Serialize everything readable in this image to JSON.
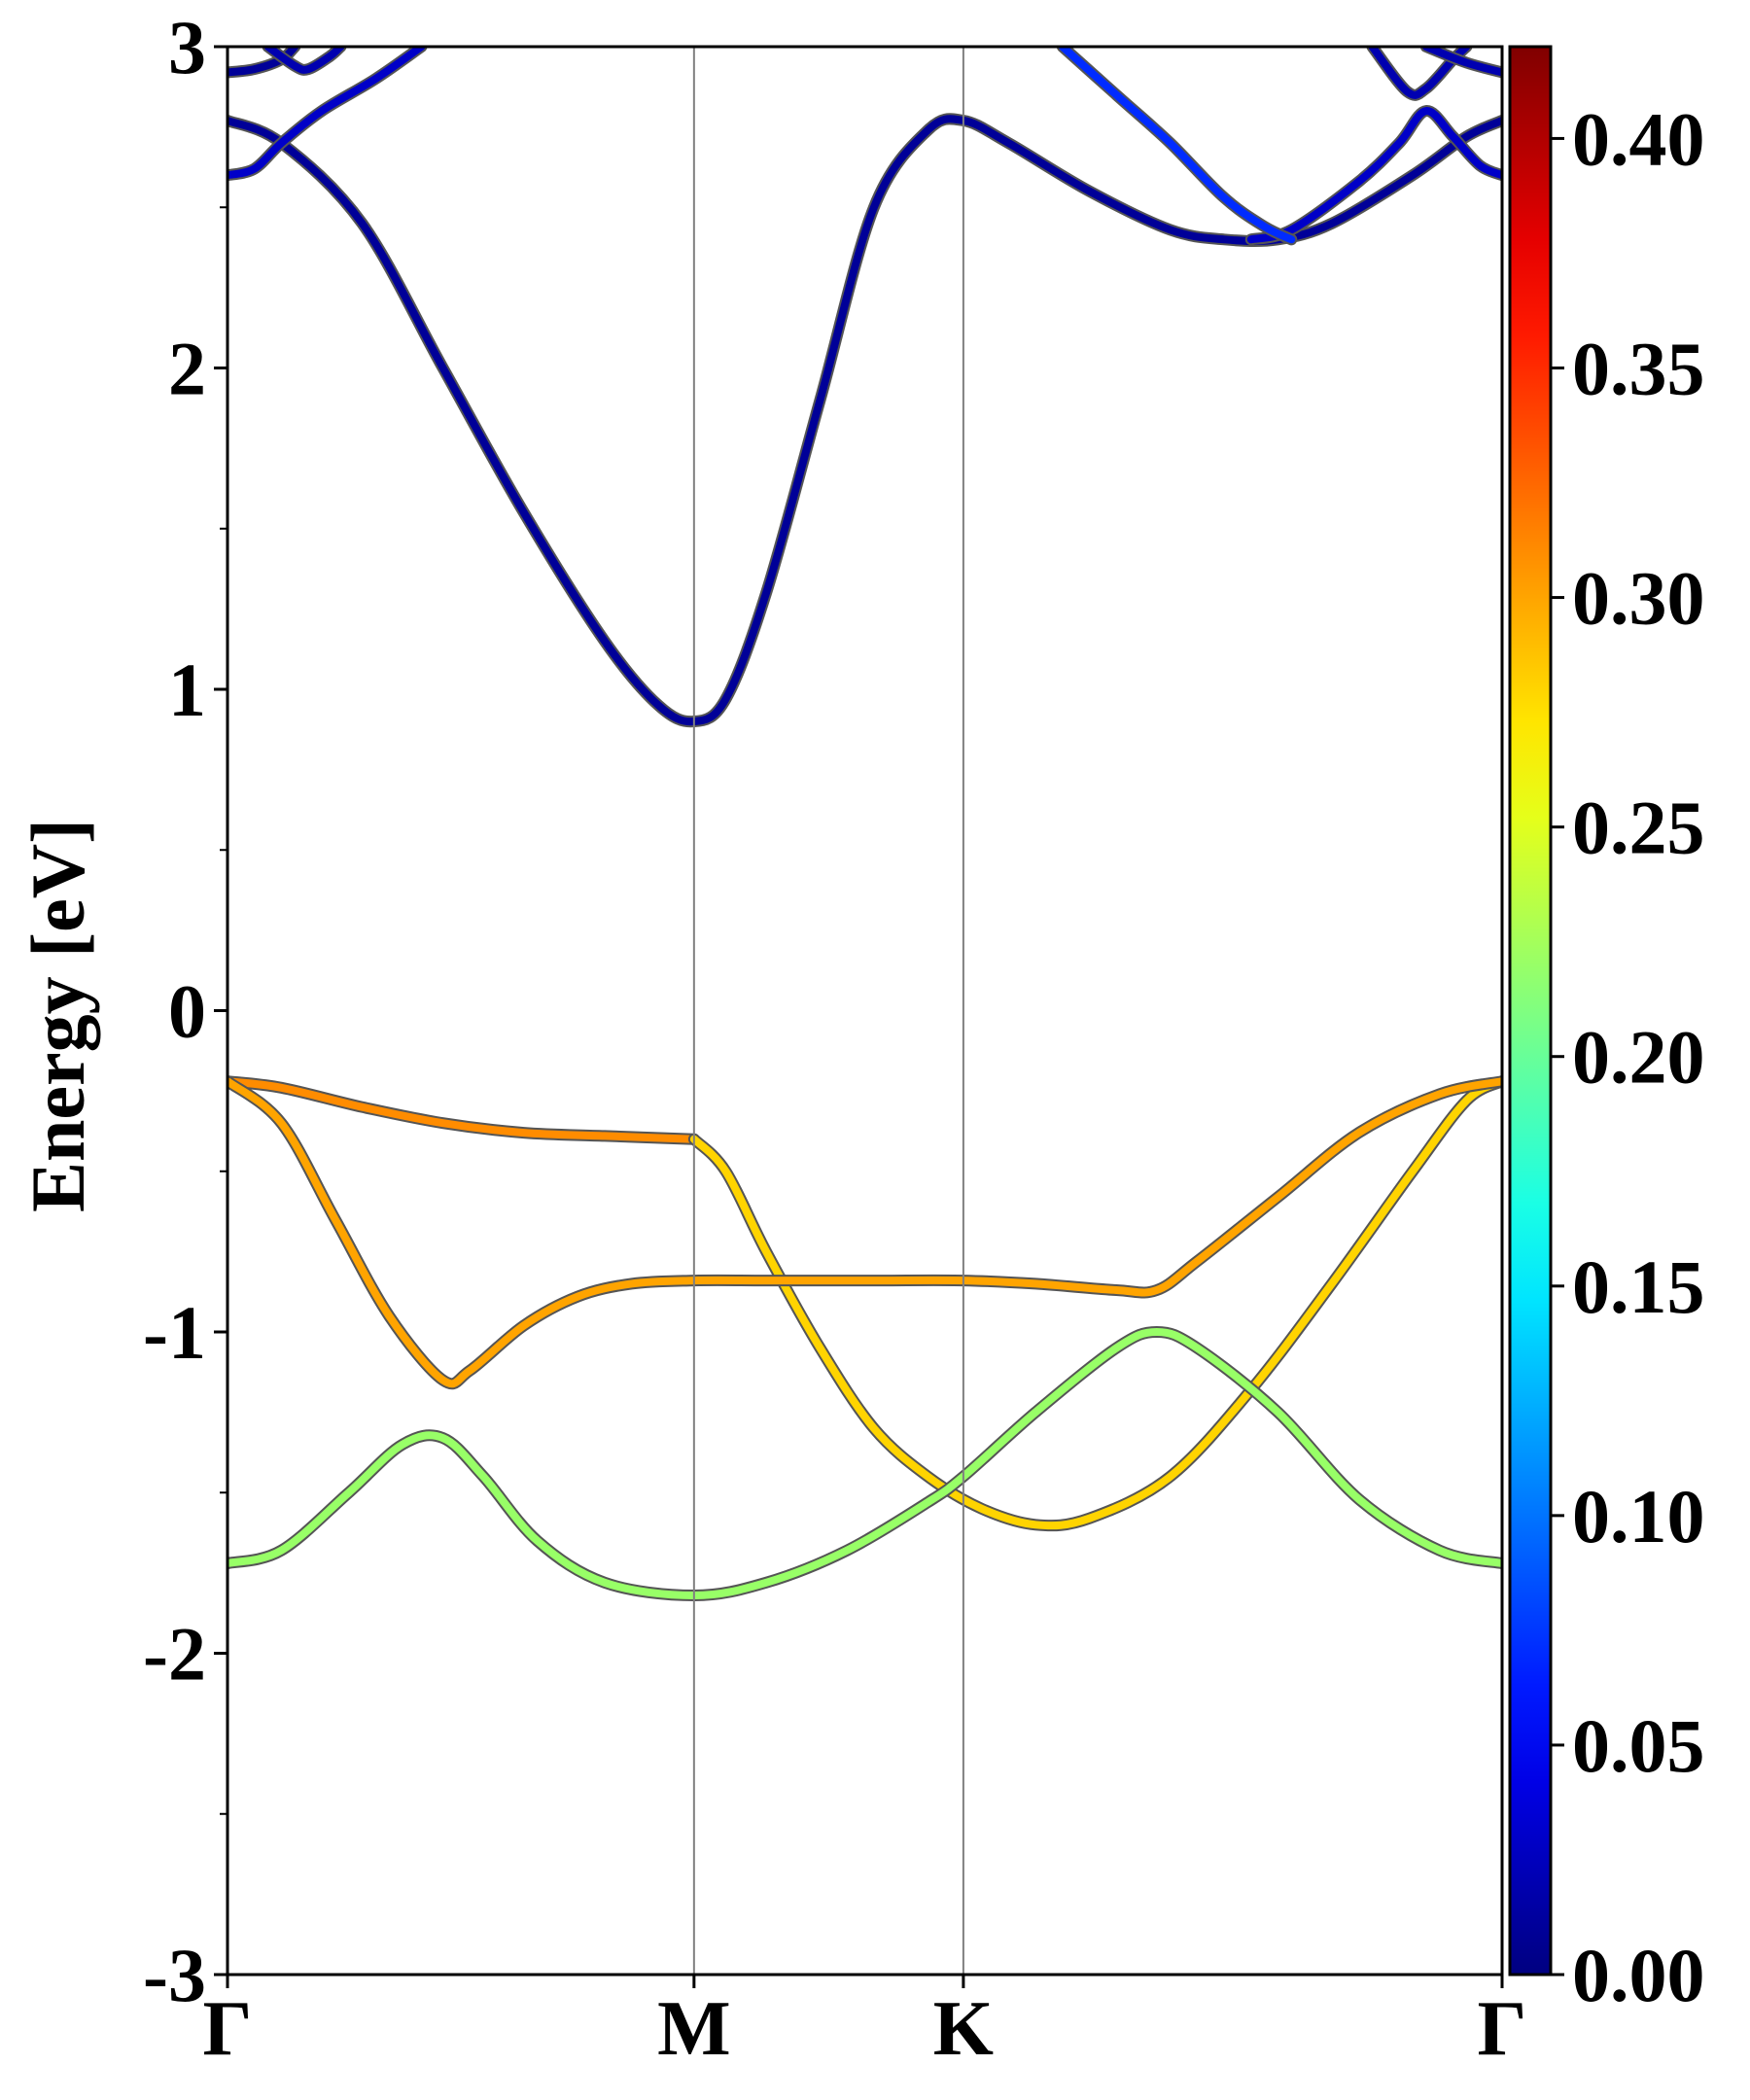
{
  "chart_data": {
    "type": "line",
    "title": "",
    "ylabel": "Energy [eV]",
    "xlabel": "",
    "ylim": [
      -3,
      3
    ],
    "yticks": [
      "-3",
      "-2",
      "-1",
      "0",
      "1",
      "2",
      "3"
    ],
    "kpath": {
      "labels": [
        "Γ",
        "M",
        "K",
        "Γ"
      ],
      "positions": [
        0,
        1.732,
        2.732,
        4.732
      ]
    },
    "colorbar": {
      "colormap": "jet",
      "range": [
        0.0,
        0.42
      ],
      "ticks": [
        "0.00",
        "0.05",
        "0.10",
        "0.15",
        "0.20",
        "0.25",
        "0.30",
        "0.35",
        "0.40"
      ]
    },
    "colors": {
      "vline": "#808080",
      "axis": "#000000",
      "band_outline": "#555555"
    },
    "series": [
      {
        "weight": 0.01,
        "points": [
          [
            0,
            2.77
          ],
          [
            0.2,
            2.7
          ],
          [
            0.5,
            2.45
          ],
          [
            0.8,
            2.0
          ],
          [
            1.1,
            1.55
          ],
          [
            1.4,
            1.15
          ],
          [
            1.6,
            0.95
          ],
          [
            1.732,
            0.9
          ],
          [
            1.85,
            0.97
          ],
          [
            2.0,
            1.3
          ],
          [
            2.2,
            1.9
          ],
          [
            2.4,
            2.5
          ],
          [
            2.6,
            2.74
          ],
          [
            2.732,
            2.77
          ],
          [
            2.9,
            2.7
          ],
          [
            3.2,
            2.55
          ],
          [
            3.5,
            2.43
          ],
          [
            3.7,
            2.4
          ],
          [
            3.9,
            2.4
          ],
          [
            4.1,
            2.45
          ],
          [
            4.4,
            2.6
          ],
          [
            4.6,
            2.72
          ],
          [
            4.732,
            2.77
          ]
        ]
      },
      {
        "weight": 0.03,
        "points": [
          [
            0,
            2.6
          ],
          [
            0.1,
            2.62
          ],
          [
            0.2,
            2.7
          ],
          [
            0.35,
            2.8
          ],
          [
            0.55,
            2.9
          ],
          [
            0.72,
            3.0
          ]
        ]
      },
      {
        "weight": 0.03,
        "points": [
          [
            3.8,
            2.4
          ],
          [
            3.95,
            2.43
          ],
          [
            4.2,
            2.58
          ],
          [
            4.35,
            2.7
          ],
          [
            4.45,
            2.8
          ],
          [
            4.55,
            2.72
          ],
          [
            4.65,
            2.63
          ],
          [
            4.732,
            2.6
          ]
        ]
      },
      {
        "weight": 0.01,
        "points": [
          [
            0,
            2.92
          ],
          [
            0.1,
            2.93
          ],
          [
            0.2,
            2.96
          ],
          [
            0.25,
            3.0
          ]
        ]
      },
      {
        "weight": 0.02,
        "points": [
          [
            0.15,
            3.0
          ],
          [
            0.25,
            2.94
          ],
          [
            0.3,
            2.93
          ],
          [
            0.38,
            2.97
          ],
          [
            0.42,
            3.0
          ]
        ]
      },
      {
        "weight": 0.02,
        "points": [
          [
            4.25,
            3.0
          ],
          [
            4.38,
            2.86
          ],
          [
            4.45,
            2.87
          ],
          [
            4.55,
            2.96
          ],
          [
            4.6,
            3.0
          ]
        ]
      },
      {
        "weight": 0.02,
        "points": [
          [
            4.45,
            3.0
          ],
          [
            4.6,
            2.95
          ],
          [
            4.732,
            2.92
          ]
        ]
      },
      {
        "weight": 0.07,
        "points": [
          [
            3.1,
            3.0
          ],
          [
            3.3,
            2.85
          ],
          [
            3.5,
            2.7
          ],
          [
            3.7,
            2.53
          ],
          [
            3.85,
            2.44
          ],
          [
            3.95,
            2.4
          ]
        ]
      },
      {
        "weight": 0.31,
        "points": [
          [
            0,
            -0.22
          ],
          [
            0.2,
            -0.24
          ],
          [
            0.5,
            -0.3
          ],
          [
            0.8,
            -0.35
          ],
          [
            1.1,
            -0.38
          ],
          [
            1.4,
            -0.39
          ],
          [
            1.732,
            -0.4
          ]
        ]
      },
      {
        "weight": 0.28,
        "points": [
          [
            1.732,
            -0.4
          ],
          [
            1.85,
            -0.5
          ],
          [
            2.0,
            -0.75
          ],
          [
            2.2,
            -1.05
          ],
          [
            2.4,
            -1.3
          ],
          [
            2.6,
            -1.45
          ],
          [
            2.8,
            -1.55
          ],
          [
            3.0,
            -1.6
          ],
          [
            3.2,
            -1.58
          ],
          [
            3.5,
            -1.45
          ],
          [
            3.8,
            -1.18
          ],
          [
            4.1,
            -0.85
          ],
          [
            4.4,
            -0.5
          ],
          [
            4.6,
            -0.28
          ],
          [
            4.732,
            -0.22
          ]
        ]
      },
      {
        "weight": 0.3,
        "points": [
          [
            0,
            -0.22
          ],
          [
            0.2,
            -0.35
          ],
          [
            0.4,
            -0.65
          ],
          [
            0.6,
            -0.95
          ],
          [
            0.8,
            -1.15
          ],
          [
            0.9,
            -1.12
          ],
          [
            1.1,
            -0.98
          ],
          [
            1.3,
            -0.89
          ],
          [
            1.5,
            -0.85
          ],
          [
            1.732,
            -0.84
          ],
          [
            2.0,
            -0.84
          ],
          [
            2.4,
            -0.84
          ],
          [
            2.732,
            -0.84
          ],
          [
            3.0,
            -0.85
          ],
          [
            3.3,
            -0.87
          ],
          [
            3.45,
            -0.87
          ],
          [
            3.6,
            -0.78
          ],
          [
            3.9,
            -0.58
          ],
          [
            4.2,
            -0.38
          ],
          [
            4.5,
            -0.26
          ],
          [
            4.732,
            -0.22
          ]
        ]
      },
      {
        "weight": 0.22,
        "points": [
          [
            0,
            -1.72
          ],
          [
            0.2,
            -1.68
          ],
          [
            0.45,
            -1.5
          ],
          [
            0.65,
            -1.35
          ],
          [
            0.8,
            -1.33
          ],
          [
            0.95,
            -1.45
          ],
          [
            1.15,
            -1.65
          ],
          [
            1.4,
            -1.78
          ],
          [
            1.732,
            -1.82
          ],
          [
            2.0,
            -1.78
          ],
          [
            2.3,
            -1.68
          ],
          [
            2.6,
            -1.53
          ],
          [
            2.732,
            -1.45
          ],
          [
            3.0,
            -1.25
          ],
          [
            3.3,
            -1.05
          ],
          [
            3.45,
            -1.0
          ],
          [
            3.6,
            -1.05
          ],
          [
            3.9,
            -1.25
          ],
          [
            4.2,
            -1.52
          ],
          [
            4.5,
            -1.68
          ],
          [
            4.732,
            -1.72
          ]
        ]
      }
    ]
  }
}
